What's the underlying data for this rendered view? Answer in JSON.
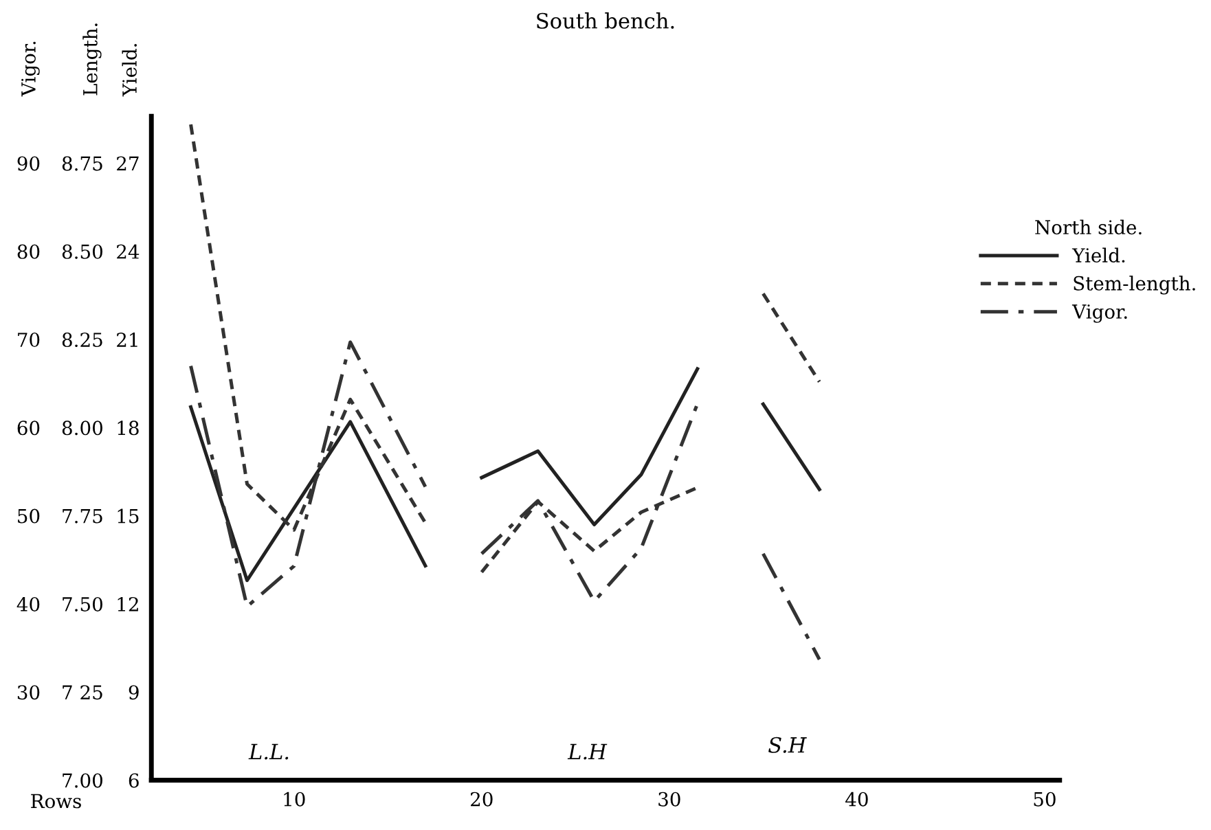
{
  "chart_data": {
    "type": "line",
    "title": "South bench.",
    "xlabel": "Rows",
    "ylabel": "Yield.",
    "y2label": "Length.",
    "y3label": "Vigor.",
    "legend_title": "North side.",
    "legend": "top right",
    "grid": false,
    "marker": "none",
    "x": [
      4.5,
      7.5,
      10,
      13,
      17,
      18.5,
      20,
      23,
      26,
      28.5,
      31.5,
      33.5,
      35,
      38
    ],
    "xlim": [
      2.4,
      50.8
    ],
    "xticks": [
      10,
      20,
      30,
      40,
      50
    ],
    "ylim": [
      6,
      28.6
    ],
    "yticks": [
      6,
      9,
      12,
      15,
      18,
      21,
      24,
      27
    ],
    "y2lim": [
      7,
      8.8833
    ],
    "y2ticks": [
      {
        "value": 7,
        "label": "7.00"
      },
      {
        "value": 7.25,
        "label": "7 25"
      },
      {
        "value": 7.5,
        "label": "7.50"
      },
      {
        "value": 7.75,
        "label": "7.75"
      },
      {
        "value": 8,
        "label": "8.00"
      },
      {
        "value": 8.25,
        "label": "8.25"
      },
      {
        "value": 8.5,
        "label": "8.50"
      },
      {
        "value": 8.75,
        "label": "8.75"
      }
    ],
    "y3lim": [
      20,
      95.33
    ],
    "y3ticks": [
      30,
      40,
      50,
      60,
      70,
      80,
      90
    ],
    "series": [
      {
        "name": "Yield.",
        "color": "#222222",
        "axis": "y",
        "line_style": "solid",
        "x": [
          4.5,
          7.5,
          13,
          17,
          18.5,
          20,
          23,
          26,
          28.5,
          31.5,
          33.5,
          35,
          38
        ],
        "values": [
          18.7,
          12.8,
          18.2,
          13.3,
          null,
          16.3,
          17.2,
          14.7,
          16.4,
          20.0,
          null,
          18.8,
          15.9
        ]
      },
      {
        "name": "Stem-length.",
        "color": "#333333",
        "axis": "y2",
        "line_style": "dashed",
        "values": [
          8.86,
          7.84,
          7.71,
          8.08,
          7.73,
          null,
          7.59,
          7.79,
          7.65,
          7.76,
          7.83,
          null,
          8.38,
          8.13
        ]
      },
      {
        "name": "Vigor.",
        "color": "#333333",
        "axis": "y3",
        "line_style": "dashdot",
        "values": [
          67,
          39.7,
          44.3,
          69.7,
          53.3,
          null,
          45.7,
          51.7,
          40.3,
          46.3,
          62.7,
          null,
          45.7,
          33.7
        ]
      }
    ],
    "annotations": [
      "L.L.",
      "L.H",
      "S.H"
    ]
  }
}
